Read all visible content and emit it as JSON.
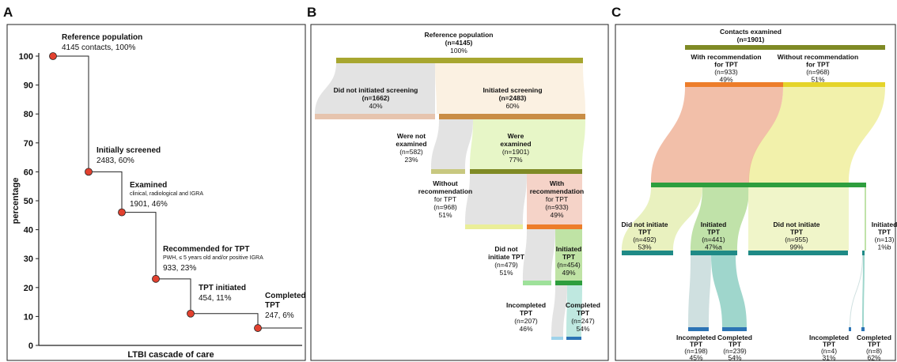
{
  "panels": {
    "a": "A",
    "b": "B",
    "c": "C"
  },
  "chart_data": [
    {
      "type": "line",
      "panel": "A",
      "xlabel": "LTBI cascade of care",
      "ylabel": "percentage",
      "ylim": [
        0,
        100
      ],
      "yticks": [
        "0",
        "10",
        "20",
        "30",
        "40",
        "50",
        "60",
        "70",
        "80",
        "90",
        "100"
      ],
      "grid": false,
      "step": true,
      "points": [
        {
          "y": 100,
          "title": "Reference population",
          "detail": "4145 contacts, 100%"
        },
        {
          "y": 60,
          "title": "Initially screened",
          "detail": "2483, 60%"
        },
        {
          "y": 46,
          "title": "Examined",
          "note": "clinical, radiological and IGRA",
          "detail": "1901, 46%"
        },
        {
          "y": 23,
          "title": "Recommended for TPT",
          "note": "PWH, ≤ 5 years old and/or positive IGRA",
          "detail": "933, 23%"
        },
        {
          "y": 11,
          "title": "TPT initiated",
          "detail": "454, 11%"
        },
        {
          "y": 6,
          "title": "Completed",
          "title2": "TPT",
          "detail": "247, 6%"
        }
      ],
      "marker_color": "#e2412f"
    },
    {
      "type": "sankey",
      "panel": "B",
      "root": {
        "l1": "Reference population",
        "l2": "(n=4145)",
        "l3": "100%",
        "value": 4145,
        "color": "#a7a62f"
      },
      "nodes": [
        {
          "l1": "Did not initiated screening",
          "l2": "(n=1662)",
          "l3": "40%",
          "value": 1662
        },
        {
          "l1": "Initiated screening",
          "l2": "(n=2483)",
          "l3": "60%",
          "value": 2483
        },
        {
          "l1": "Were not",
          "l2": "examined",
          "l3": "(n=582)",
          "l4": "23%",
          "value": 582
        },
        {
          "l1": "Were",
          "l2": "examined",
          "l3": "(n=1901)",
          "l4": "77%",
          "value": 1901
        },
        {
          "l1": "Without",
          "l2": "recommendation",
          "l3": "for TPT",
          "l4": "(n=968)",
          "l5": "51%",
          "value": 968
        },
        {
          "l1": "With",
          "l2": "recommendation",
          "l3": "for TPT",
          "l4": "(n=933)",
          "l5": "49%",
          "value": 933
        },
        {
          "l1": "Did not",
          "l2": "initiate TPT",
          "l3": "(n=479)",
          "l4": "51%",
          "value": 479
        },
        {
          "l1": "Initiated",
          "l2": "TPT",
          "l3": "(n=454)",
          "l4": "49%",
          "value": 454
        },
        {
          "l1": "Incompleted",
          "l2": "TPT",
          "l3": "(n=207)",
          "l4": "46%",
          "value": 207
        },
        {
          "l1": "Completed",
          "l2": "TPT",
          "l3": "(n=247)",
          "l4": "54%",
          "value": 247
        }
      ]
    },
    {
      "type": "sankey",
      "panel": "C",
      "root": {
        "l1": "Contacts examined",
        "l2": "(n=1901)",
        "value": 1901
      },
      "nodes": [
        {
          "l1": "With recommendation",
          "l2": "for TPT",
          "l3": "(n=933)",
          "l4": "49%",
          "value": 933
        },
        {
          "l1": "Without recommendation",
          "l2": "for TPT",
          "l3": "(n=968)",
          "l4": "51%",
          "value": 968
        },
        {
          "l1": "Did not initiate",
          "l2": "TPT",
          "l3": "(n=492)",
          "l4": "53%",
          "value": 492
        },
        {
          "l1": "Initiated",
          "l2": "TPT",
          "l3": "(n=441)",
          "l4": "47%",
          "sup": "a",
          "value": 441
        },
        {
          "l1": "Did not initiate",
          "l2": "TPT",
          "l3": "(n=955)",
          "l4": "99%",
          "value": 955
        },
        {
          "l1": "Initiated",
          "l2": "TPT",
          "l3": "(n=13)",
          "l4": "1%",
          "sup": "b",
          "value": 13
        },
        {
          "l1": "Incompleted",
          "l2": "TPT",
          "l3": "(n=198)",
          "l4": "45%",
          "value": 198
        },
        {
          "l1": "Completed",
          "l2": "TPT",
          "l3": "(n=239)",
          "l4": "54%",
          "value": 239
        },
        {
          "l1": "Incompleted",
          "l2": "TPT",
          "l3": "(n=4)",
          "l4": "31%",
          "value": 4
        },
        {
          "l1": "Completed",
          "l2": "TPT",
          "l3": "(n=8)",
          "l4": "62%",
          "value": 8
        }
      ]
    }
  ]
}
